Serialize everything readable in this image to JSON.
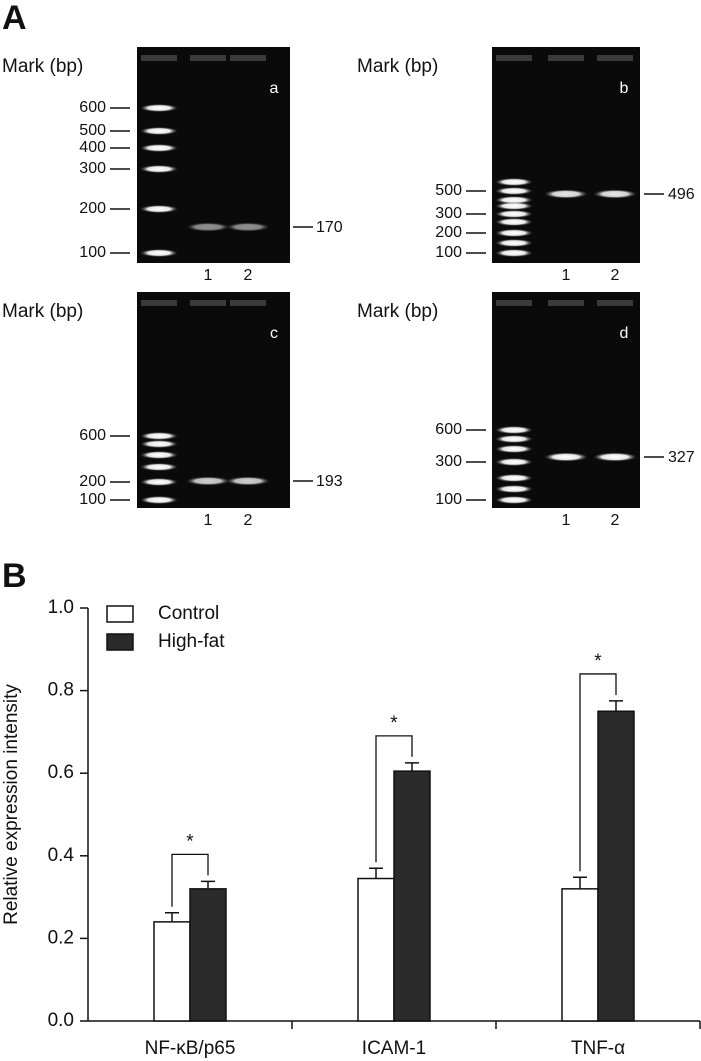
{
  "panel_a": {
    "label": "A",
    "gels": [
      {
        "id": "a",
        "marker_title": "Mark (bp)",
        "marker_ticks": [
          600,
          500,
          400,
          300,
          200,
          100
        ],
        "band": 170,
        "lanes": [
          "1",
          "2"
        ]
      },
      {
        "id": "b",
        "marker_title": "Mark (bp)",
        "marker_ticks": [
          500,
          300,
          200,
          100
        ],
        "band": 496,
        "lanes": [
          "1",
          "2"
        ]
      },
      {
        "id": "c",
        "marker_title": "Mark (bp)",
        "marker_ticks": [
          600,
          200,
          100
        ],
        "band": 193,
        "lanes": [
          "1",
          "2"
        ]
      },
      {
        "id": "d",
        "marker_title": "Mark (bp)",
        "marker_ticks": [
          600,
          300,
          100
        ],
        "band": 327,
        "lanes": [
          "1",
          "2"
        ]
      }
    ]
  },
  "chart_data": {
    "panel_label": "B",
    "type": "bar",
    "ylabel": "Relative expression intensity",
    "categories": [
      "NF-κB/p65",
      "ICAM-1",
      "TNF-α"
    ],
    "series": [
      {
        "name": "Control",
        "color": "#ffffff",
        "values": [
          0.24,
          0.345,
          0.32
        ],
        "errors": [
          0.022,
          0.025,
          0.028
        ]
      },
      {
        "name": "High-fat",
        "color": "#2b2b2b",
        "values": [
          0.32,
          0.605,
          0.75
        ],
        "errors": [
          0.018,
          0.02,
          0.025
        ]
      }
    ],
    "annotations": [
      "*",
      "*",
      "*"
    ],
    "ylim": [
      0,
      1
    ],
    "yticks": [
      {
        "value": 0,
        "label": "0.0"
      },
      0.2,
      0.4,
      0.6,
      0.8,
      {
        "value": 1,
        "label": "1.0"
      }
    ],
    "legend": "upper left"
  }
}
